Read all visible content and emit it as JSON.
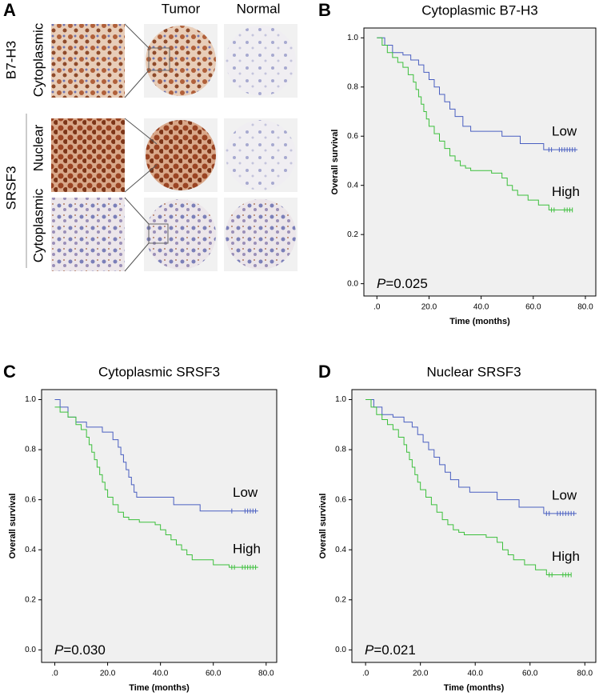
{
  "panel_a": {
    "label": "A",
    "col_tumor": "Tumor",
    "col_normal": "Normal",
    "row1_marker": "B7-H3",
    "row1_loc": "Cytoplasmic",
    "row23_marker": "SRSF3",
    "row2_loc": "Nuclear",
    "row3_loc": "Cytoplasmic"
  },
  "chart_data": [
    {
      "type": "line",
      "step": true,
      "panel_label": "B",
      "title": "Cytoplasmic B7-H3",
      "xlabel": "Time (months)",
      "ylabel": "Overall survival",
      "p_symbol": "P",
      "p_text": "=0.025",
      "xlim": [
        -5,
        84
      ],
      "ylim": [
        -0.05,
        1.04
      ],
      "xticks": [
        {
          "value": 0,
          "label": ".0"
        },
        {
          "value": 20,
          "label": "20.0"
        },
        {
          "value": 40,
          "label": "40.0"
        },
        {
          "value": 60,
          "label": "60.0"
        },
        {
          "value": 80,
          "label": "80.0"
        }
      ],
      "yticks": [
        {
          "value": 0,
          "label": "0.0"
        },
        {
          "value": 0.2,
          "label": "0.2"
        },
        {
          "value": 0.4,
          "label": "0.4"
        },
        {
          "value": 0.6,
          "label": "0.6"
        },
        {
          "value": 0.8,
          "label": "0.8"
        },
        {
          "value": 1,
          "label": "1.0"
        }
      ],
      "series": [
        {
          "name": "Low",
          "color": "#4a5fc1",
          "x": [
            0,
            3,
            6,
            10,
            13,
            16,
            18,
            20,
            22,
            24,
            26,
            28,
            30,
            33,
            36,
            48,
            55,
            64,
            77
          ],
          "values": [
            1.0,
            0.97,
            0.94,
            0.93,
            0.91,
            0.89,
            0.86,
            0.83,
            0.8,
            0.77,
            0.74,
            0.71,
            0.68,
            0.64,
            0.62,
            0.6,
            0.57,
            0.545,
            0.545
          ],
          "censored": [
            66,
            67,
            70,
            71,
            72,
            73,
            74,
            75,
            76
          ]
        },
        {
          "name": "High",
          "color": "#3cbf3c",
          "x": [
            0,
            2,
            4,
            6,
            8,
            10,
            12,
            14,
            15,
            16,
            17,
            18,
            19,
            20,
            22,
            24,
            26,
            28,
            30,
            32,
            34,
            36,
            44,
            48,
            50,
            52,
            54,
            58,
            62,
            66,
            75
          ],
          "values": [
            1.0,
            0.97,
            0.94,
            0.92,
            0.9,
            0.88,
            0.85,
            0.82,
            0.79,
            0.76,
            0.73,
            0.7,
            0.67,
            0.64,
            0.61,
            0.58,
            0.55,
            0.52,
            0.5,
            0.48,
            0.47,
            0.46,
            0.45,
            0.43,
            0.4,
            0.38,
            0.36,
            0.34,
            0.32,
            0.3,
            0.3
          ],
          "censored": [
            67,
            68,
            72,
            73,
            74,
            75
          ]
        }
      ]
    },
    {
      "type": "line",
      "step": true,
      "panel_label": "C",
      "title": "Cytoplasmic SRSF3",
      "xlabel": "Time (months)",
      "ylabel": "Overall survival",
      "p_symbol": "P",
      "p_text": "=0.030",
      "xlim": [
        -5,
        84
      ],
      "ylim": [
        -0.05,
        1.04
      ],
      "xticks": [
        {
          "value": 0,
          "label": ".0"
        },
        {
          "value": 20,
          "label": "20.0"
        },
        {
          "value": 40,
          "label": "40.0"
        },
        {
          "value": 60,
          "label": "60.0"
        },
        {
          "value": 80,
          "label": "80.0"
        }
      ],
      "yticks": [
        {
          "value": 0,
          "label": "0.0"
        },
        {
          "value": 0.2,
          "label": "0.2"
        },
        {
          "value": 0.4,
          "label": "0.4"
        },
        {
          "value": 0.6,
          "label": "0.6"
        },
        {
          "value": 0.8,
          "label": "0.8"
        },
        {
          "value": 1,
          "label": "1.0"
        }
      ],
      "series": [
        {
          "name": "Low",
          "color": "#4a5fc1",
          "x": [
            0,
            2,
            5,
            8,
            12,
            18,
            22,
            24,
            25,
            26,
            27,
            28,
            29,
            30,
            31,
            32,
            45,
            55,
            77
          ],
          "values": [
            1.0,
            0.97,
            0.93,
            0.91,
            0.89,
            0.87,
            0.84,
            0.81,
            0.78,
            0.75,
            0.72,
            0.69,
            0.66,
            0.63,
            0.61,
            0.61,
            0.58,
            0.555,
            0.555
          ],
          "censored": [
            67,
            72,
            73,
            74,
            75,
            76
          ]
        },
        {
          "name": "High",
          "color": "#3cbf3c",
          "x": [
            0,
            2,
            5,
            8,
            10,
            12,
            13,
            14,
            15,
            16,
            17,
            18,
            19,
            20,
            22,
            24,
            26,
            28,
            32,
            38,
            40,
            42,
            44,
            46,
            48,
            50,
            52,
            60,
            66,
            77
          ],
          "values": [
            0.97,
            0.95,
            0.93,
            0.9,
            0.88,
            0.85,
            0.82,
            0.79,
            0.76,
            0.73,
            0.7,
            0.67,
            0.64,
            0.61,
            0.58,
            0.55,
            0.53,
            0.52,
            0.51,
            0.5,
            0.48,
            0.46,
            0.44,
            0.42,
            0.4,
            0.38,
            0.36,
            0.34,
            0.33,
            0.33
          ],
          "censored": [
            67,
            68,
            71,
            72,
            73,
            74,
            75,
            76
          ]
        }
      ]
    },
    {
      "type": "line",
      "step": true,
      "panel_label": "D",
      "title": "Nuclear SRSF3",
      "xlabel": "Time (months)",
      "ylabel": "Overall survival",
      "p_symbol": "P",
      "p_text": "=0.021",
      "xlim": [
        -5,
        84
      ],
      "ylim": [
        -0.05,
        1.04
      ],
      "xticks": [
        {
          "value": 0,
          "label": ".0"
        },
        {
          "value": 20,
          "label": "20.0"
        },
        {
          "value": 40,
          "label": "40.0"
        },
        {
          "value": 60,
          "label": "60.0"
        },
        {
          "value": 80,
          "label": "80.0"
        }
      ],
      "yticks": [
        {
          "value": 0,
          "label": "0.0"
        },
        {
          "value": 0.2,
          "label": "0.2"
        },
        {
          "value": 0.4,
          "label": "0.4"
        },
        {
          "value": 0.6,
          "label": "0.6"
        },
        {
          "value": 0.8,
          "label": "0.8"
        },
        {
          "value": 1,
          "label": "1.0"
        }
      ],
      "series": [
        {
          "name": "Low",
          "color": "#4a5fc1",
          "x": [
            0,
            3,
            6,
            10,
            14,
            17,
            19,
            21,
            23,
            25,
            27,
            29,
            31,
            34,
            38,
            48,
            56,
            65,
            77
          ],
          "values": [
            1.0,
            0.97,
            0.94,
            0.93,
            0.91,
            0.89,
            0.86,
            0.83,
            0.8,
            0.77,
            0.74,
            0.71,
            0.68,
            0.65,
            0.63,
            0.6,
            0.57,
            0.545,
            0.545
          ],
          "censored": [
            66,
            67,
            70,
            71,
            72,
            73,
            74,
            75,
            76
          ]
        },
        {
          "name": "High",
          "color": "#3cbf3c",
          "x": [
            0,
            2,
            4,
            6,
            8,
            10,
            12,
            14,
            15,
            16,
            17,
            18,
            19,
            20,
            22,
            24,
            26,
            28,
            30,
            32,
            34,
            36,
            44,
            48,
            50,
            52,
            54,
            58,
            62,
            66,
            75
          ],
          "values": [
            1.0,
            0.97,
            0.94,
            0.92,
            0.9,
            0.88,
            0.85,
            0.82,
            0.79,
            0.76,
            0.73,
            0.7,
            0.67,
            0.64,
            0.61,
            0.58,
            0.55,
            0.52,
            0.5,
            0.48,
            0.47,
            0.46,
            0.45,
            0.43,
            0.4,
            0.38,
            0.36,
            0.34,
            0.32,
            0.3,
            0.3
          ],
          "censored": [
            67,
            68,
            72,
            73,
            74,
            75
          ]
        }
      ]
    }
  ]
}
